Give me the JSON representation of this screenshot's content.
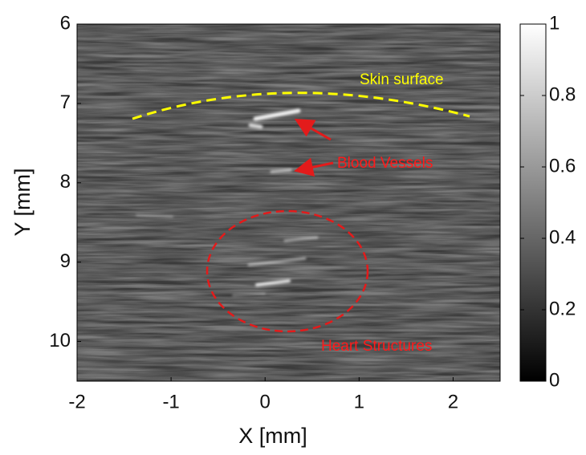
{
  "chart_data": {
    "type": "image",
    "xlabel": "X [mm]",
    "ylabel": "Y [mm]",
    "xlim": [
      -2,
      2.5
    ],
    "xticks": [
      -2,
      -1,
      0,
      1,
      2
    ],
    "ylim": [
      6,
      10.5
    ],
    "yticks": [
      6,
      7,
      8,
      9,
      10
    ],
    "y_inverted": true,
    "colormap": "gray",
    "clim": [
      0,
      1
    ],
    "colorbar_ticks": [
      0,
      0.2,
      0.4,
      0.6,
      0.8,
      1
    ],
    "annotations": [
      {
        "text": "Skin surface",
        "color": "#ffff00"
      },
      {
        "text": "Blood Vessels",
        "color": "#ff1a1a"
      },
      {
        "text": "Heart Structures",
        "color": "#ff1a1a"
      }
    ]
  }
}
